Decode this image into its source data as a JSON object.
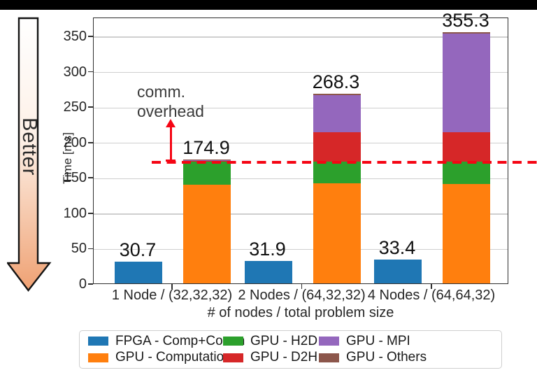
{
  "frame": {
    "better_label": "Better"
  },
  "annotation": {
    "line1": "comm.",
    "line2": "overhead"
  },
  "chart_data": {
    "type": "bar",
    "title": "",
    "xlabel": "# of nodes / total problem size",
    "ylabel": "Time [ms]",
    "ylim": [
      0,
      378
    ],
    "yticks": [
      0,
      50,
      100,
      150,
      200,
      250,
      300,
      350
    ],
    "grid": "horizontal",
    "legend_position": "bottom",
    "categories": [
      "1 Node / (32,32,32)",
      "2 Nodes / (64,32,32)",
      "4 Nodes / (64,64,32)"
    ],
    "fpga": {
      "name": "FPGA - Comp+Comm",
      "color": "#1f77b4",
      "values": [
        30.7,
        31.9,
        33.4
      ],
      "value_labels": [
        "30.7",
        "31.9",
        "33.4"
      ]
    },
    "gpu_stack": {
      "totals": [
        174.9,
        268.3,
        355.3
      ],
      "total_labels": [
        "174.9",
        "268.3",
        "355.3"
      ],
      "series": [
        {
          "name": "GPU - Computation",
          "color": "#ff7f0e",
          "values": [
            139.5,
            141.0,
            140.0
          ]
        },
        {
          "name": "GPU - H2D",
          "color": "#2ca02c",
          "values": [
            32.8,
            31.0,
            32.0
          ]
        },
        {
          "name": "GPU - D2H",
          "color": "#d62728",
          "values": [
            1.0,
            42.0,
            42.0
          ]
        },
        {
          "name": "GPU - MPI",
          "color": "#9467bd",
          "values": [
            0.5,
            51.5,
            138.5
          ]
        },
        {
          "name": "GPU - Others",
          "color": "#8c564b",
          "values": [
            1.1,
            2.8,
            2.8
          ]
        }
      ]
    },
    "dashed_line": {
      "value": 172.5,
      "color": "#f50514",
      "meaning": "comm. overhead threshold"
    },
    "legend": [
      {
        "label": "FPGA - Comp+Comm",
        "color": "#1f77b4"
      },
      {
        "label": "GPU - Computation",
        "color": "#ff7f0e"
      },
      {
        "label": "GPU - H2D",
        "color": "#2ca02c"
      },
      {
        "label": "GPU - D2H",
        "color": "#d62728"
      },
      {
        "label": "GPU - MPI",
        "color": "#9467bd"
      },
      {
        "label": "GPU - Others",
        "color": "#8c564b"
      }
    ]
  }
}
